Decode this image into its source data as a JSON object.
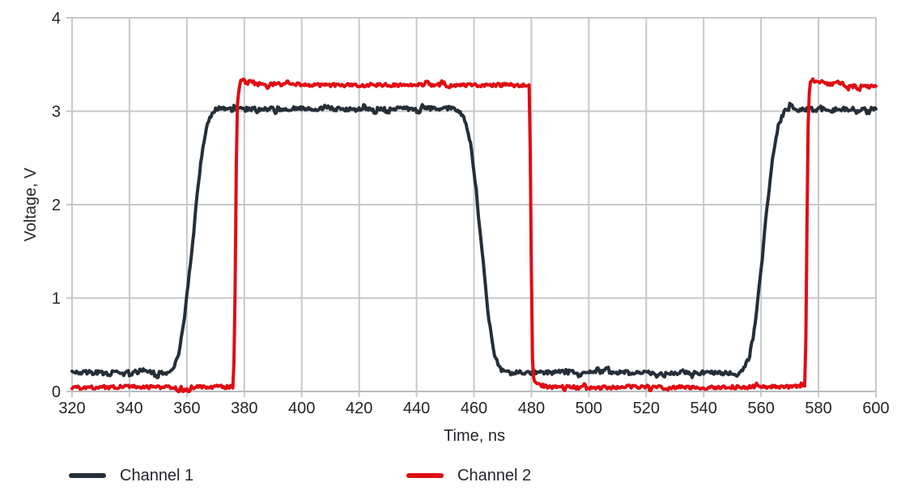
{
  "figure": {
    "background": "#ffffff",
    "text_color": "#23262a",
    "grid_color": "#c6c9cb",
    "baseline_color": "#b9bcbf"
  },
  "chart_data": {
    "type": "line",
    "title": "",
    "xlabel": "Time, ns",
    "ylabel": "Voltage, V",
    "xlim": [
      320,
      600
    ],
    "ylim": [
      0,
      4
    ],
    "x_ticks": [
      320,
      340,
      360,
      380,
      400,
      420,
      440,
      460,
      480,
      500,
      520,
      540,
      560,
      580,
      600
    ],
    "y_ticks": [
      0,
      1,
      2,
      3,
      4
    ],
    "grid": true,
    "legend_position": "bottom",
    "series": [
      {
        "name": "Channel 1",
        "color": "#262f38",
        "low_level_v": 0.2,
        "high_level_v": 3.02,
        "rise_time_ns": 15,
        "noise_v": 0.022,
        "keypoints": [
          [
            320,
            0.21
          ],
          [
            330,
            0.2
          ],
          [
            340,
            0.21
          ],
          [
            350,
            0.2
          ],
          [
            353.5,
            0.2
          ],
          [
            355,
            0.24
          ],
          [
            357,
            0.38
          ],
          [
            359,
            0.75
          ],
          [
            361,
            1.3
          ],
          [
            363,
            1.95
          ],
          [
            365,
            2.5
          ],
          [
            367,
            2.85
          ],
          [
            369,
            2.99
          ],
          [
            371,
            3.04
          ],
          [
            373,
            3.02
          ],
          [
            380,
            3.02
          ],
          [
            400,
            3.03
          ],
          [
            420,
            3.02
          ],
          [
            440,
            3.03
          ],
          [
            453.5,
            3.03
          ],
          [
            455,
            3.0
          ],
          [
            457,
            2.9
          ],
          [
            459,
            2.62
          ],
          [
            461,
            2.1
          ],
          [
            463,
            1.45
          ],
          [
            465,
            0.82
          ],
          [
            467,
            0.4
          ],
          [
            469,
            0.24
          ],
          [
            471,
            0.2
          ],
          [
            480,
            0.2
          ],
          [
            500,
            0.21
          ],
          [
            520,
            0.2
          ],
          [
            540,
            0.2
          ],
          [
            552.5,
            0.2
          ],
          [
            554,
            0.24
          ],
          [
            556,
            0.38
          ],
          [
            558,
            0.75
          ],
          [
            560,
            1.3
          ],
          [
            562,
            1.95
          ],
          [
            564,
            2.5
          ],
          [
            566,
            2.85
          ],
          [
            568,
            2.99
          ],
          [
            570,
            3.04
          ],
          [
            572,
            3.02
          ],
          [
            580,
            3.02
          ],
          [
            590,
            3.02
          ],
          [
            600,
            3.02
          ]
        ]
      },
      {
        "name": "Channel 2",
        "color": "#e00d13",
        "low_level_v": 0.05,
        "high_level_v": 3.28,
        "rise_time_ns": 1.5,
        "noise_v": 0.018,
        "keypoints": [
          [
            320,
            0.04
          ],
          [
            340,
            0.05
          ],
          [
            360,
            0.04
          ],
          [
            370,
            0.05
          ],
          [
            376.2,
            0.05
          ],
          [
            376.7,
            0.7
          ],
          [
            377.1,
            2.2
          ],
          [
            377.5,
            3.05
          ],
          [
            378.2,
            3.27
          ],
          [
            379.5,
            3.31
          ],
          [
            381,
            3.3
          ],
          [
            382.5,
            3.33
          ],
          [
            384,
            3.29
          ],
          [
            390,
            3.29
          ],
          [
            410,
            3.28
          ],
          [
            430,
            3.28
          ],
          [
            450,
            3.28
          ],
          [
            470,
            3.28
          ],
          [
            479.2,
            3.28
          ],
          [
            479.7,
            2.4
          ],
          [
            480.1,
            0.9
          ],
          [
            480.5,
            0.16
          ],
          [
            481.5,
            0.1
          ],
          [
            483,
            0.07
          ],
          [
            485,
            0.05
          ],
          [
            500,
            0.04
          ],
          [
            520,
            0.05
          ],
          [
            540,
            0.04
          ],
          [
            560,
            0.05
          ],
          [
            575.2,
            0.05
          ],
          [
            575.7,
            0.7
          ],
          [
            576.1,
            2.2
          ],
          [
            576.5,
            3.08
          ],
          [
            577.2,
            3.28
          ],
          [
            578.5,
            3.32
          ],
          [
            580,
            3.3
          ],
          [
            581.5,
            3.33
          ],
          [
            583,
            3.29
          ],
          [
            590,
            3.27
          ],
          [
            600,
            3.26
          ]
        ]
      }
    ]
  },
  "legend": {
    "items": [
      {
        "label": "Channel 1",
        "color": "#262f38"
      },
      {
        "label": "Channel 2",
        "color": "#e00d13"
      }
    ]
  }
}
